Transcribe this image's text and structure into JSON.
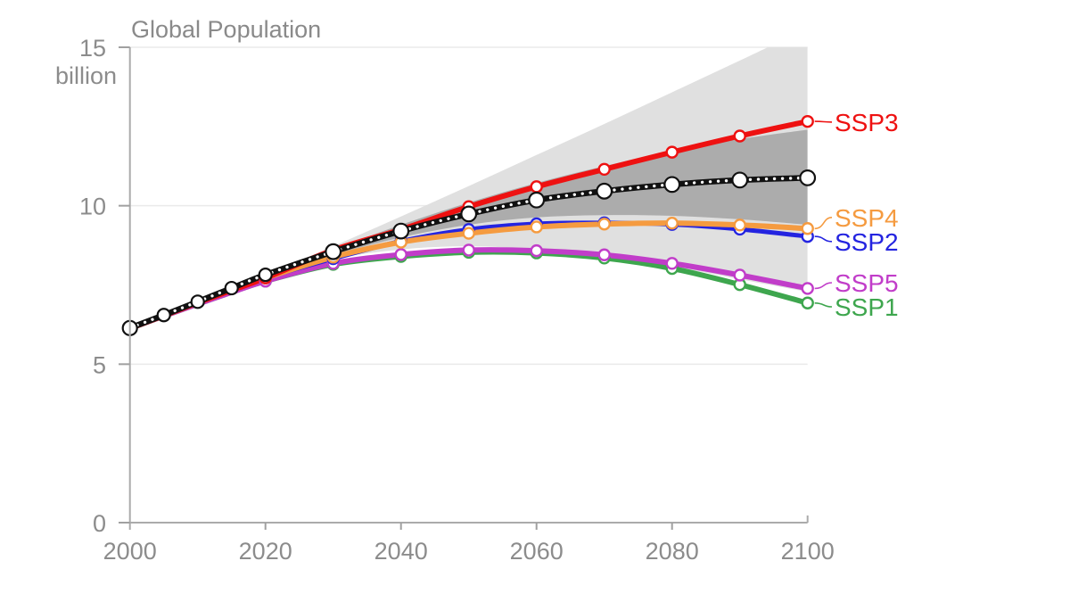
{
  "chart_data": {
    "type": "line",
    "title": "Global Population",
    "y_axis": {
      "unit": "billion",
      "ticks": [
        0,
        5,
        10,
        15
      ],
      "range": [
        0,
        15
      ],
      "gridlines": [
        5,
        10,
        15
      ]
    },
    "x_axis": {
      "tick_labels": [
        2000,
        2020,
        2040,
        2060,
        2080,
        2100
      ],
      "marked_ticks": [
        2020,
        2040,
        2060,
        2080
      ],
      "end_cap_tick": 2100,
      "range": [
        2000,
        2100
      ]
    },
    "history_years": [
      2000,
      2005,
      2010,
      2015,
      2020
    ],
    "projection_years": [
      2020,
      2030,
      2040,
      2050,
      2060,
      2070,
      2080,
      2090,
      2100
    ],
    "median_dotted_line": {
      "style": "black-dotted-with-white-markers",
      "color": "#111111",
      "dot_color": "#ffffff",
      "history_values": [
        6.14,
        6.55,
        6.97,
        7.4,
        7.82
      ],
      "projection_values": [
        7.82,
        8.55,
        9.2,
        9.74,
        10.18,
        10.46,
        10.67,
        10.81,
        10.88
      ]
    },
    "series": [
      {
        "label": "SSP1",
        "color": "#3ea64e",
        "history_values": [
          6.13,
          6.52,
          6.9,
          7.27,
          7.62
        ],
        "projection_values": [
          7.62,
          8.15,
          8.4,
          8.53,
          8.51,
          8.35,
          8.02,
          7.51,
          6.93
        ],
        "label_value": 6.81,
        "line_width": 6
      },
      {
        "label": "SSP5",
        "color": "#c13dc9",
        "history_values": [
          6.13,
          6.52,
          6.9,
          7.27,
          7.62
        ],
        "projection_values": [
          7.62,
          8.18,
          8.46,
          8.6,
          8.58,
          8.45,
          8.18,
          7.81,
          7.39
        ],
        "label_value": 7.57,
        "line_width": 6
      },
      {
        "label": "SSP2",
        "color": "#2424e0",
        "history_values": [
          6.13,
          6.53,
          6.94,
          7.33,
          7.72
        ],
        "projection_values": [
          7.72,
          8.33,
          8.88,
          9.25,
          9.43,
          9.46,
          9.41,
          9.26,
          9.03
        ],
        "label_value": 8.87,
        "line_width": 5
      },
      {
        "label": "SSP4",
        "color": "#f59b40",
        "history_values": [
          6.13,
          6.53,
          6.94,
          7.33,
          7.72
        ],
        "projection_values": [
          7.72,
          8.38,
          8.85,
          9.13,
          9.33,
          9.42,
          9.45,
          9.39,
          9.28
        ],
        "label_value": 9.63,
        "line_width": 6
      },
      {
        "label": "SSP3",
        "color": "#ee1111",
        "history_values": [
          6.13,
          6.53,
          6.94,
          7.33,
          7.72
        ],
        "projection_values": [
          7.72,
          8.6,
          9.25,
          9.97,
          10.6,
          11.15,
          11.69,
          12.2,
          12.66
        ],
        "label_value": 12.64,
        "line_width": 6
      }
    ],
    "bands": [
      {
        "name": "outer-range",
        "color": "#e0e0e0",
        "upper": [
          7.82,
          8.72,
          9.66,
          10.62,
          11.6,
          12.58,
          13.58,
          14.58,
          15.6
        ],
        "lower": [
          7.8,
          8.32,
          8.62,
          8.72,
          8.62,
          8.4,
          8.08,
          7.68,
          7.28
        ]
      },
      {
        "name": "inner-range",
        "color": "#acacac",
        "upper": [
          7.82,
          8.62,
          9.4,
          10.1,
          10.72,
          11.25,
          11.72,
          12.1,
          12.4
        ],
        "lower": [
          7.8,
          8.45,
          9.0,
          9.4,
          9.63,
          9.7,
          9.68,
          9.57,
          9.4
        ]
      }
    ],
    "colors": {
      "axis": "#ababab",
      "tick": "#a0a0a0",
      "grid": "#eaeaea",
      "text": "#8c8c8c",
      "background": "#ffffff"
    },
    "legend_position": "right-of-line-ends"
  }
}
